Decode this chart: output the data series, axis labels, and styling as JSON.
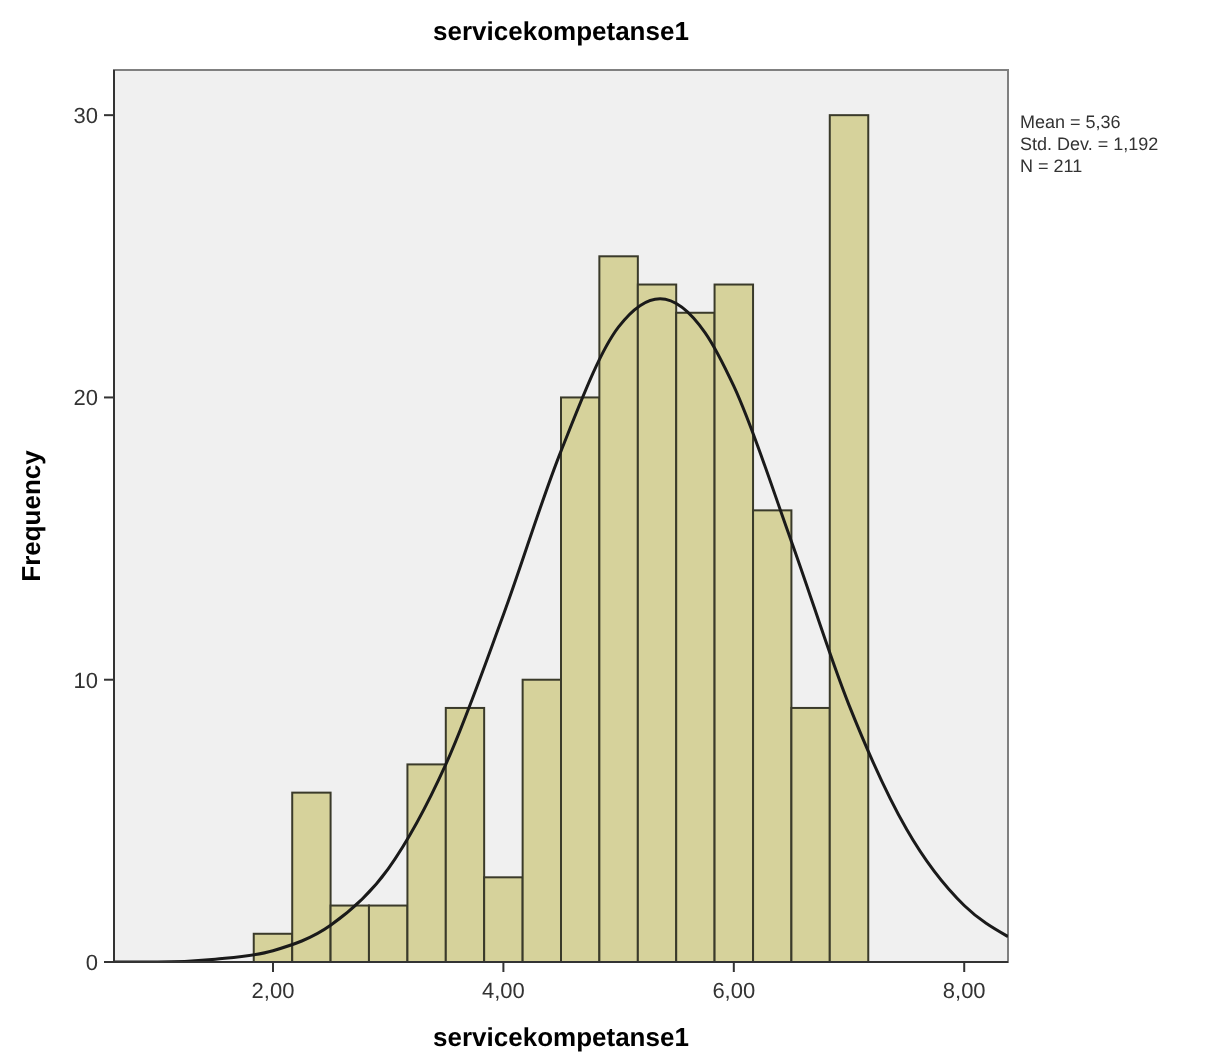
{
  "chart_data": {
    "type": "histogram",
    "title": "servicekompetanse1",
    "xlabel": "servicekompetanse1",
    "ylabel": "Frequency",
    "xlim": [
      0.62,
      8.38
    ],
    "xticks": [
      {
        "value": 2,
        "label": "2,00"
      },
      {
        "value": 4,
        "label": "4,00"
      },
      {
        "value": 6,
        "label": "6,00"
      },
      {
        "value": 8,
        "label": "8,00"
      }
    ],
    "ylim": [
      0,
      31.6
    ],
    "yticks": [
      0,
      10,
      20,
      30
    ],
    "annotations": [
      "Mean = 5,36",
      "Std. Dev. = 1,192",
      "N = 211"
    ],
    "series": [
      {
        "color": "#d6d29b",
        "bins": [
          1.833,
          2.167,
          2.5,
          2.833,
          3.167,
          3.5,
          3.833,
          4.167,
          4.5,
          4.833,
          5.167,
          5.5,
          5.833,
          6.167,
          6.5,
          6.833,
          7.167
        ],
        "values": [
          1,
          6,
          2,
          2,
          7,
          9,
          3,
          10,
          20,
          25,
          24,
          23,
          24,
          16,
          9,
          30
        ]
      },
      {
        "type": "line",
        "color": "#1a1a1a",
        "x": [
          0.62,
          1,
          1.5,
          2,
          2.5,
          3,
          3.5,
          4,
          4.5,
          5,
          5.36,
          5.75,
          6,
          6.5,
          7,
          7.5,
          8,
          8.38
        ],
        "values": [
          0.0,
          0.0,
          0.1,
          0.4,
          1.3,
          3.3,
          7.0,
          12.3,
          18.1,
          22.5,
          23.5,
          22.3,
          20.4,
          14.9,
          9.1,
          4.7,
          2.0,
          0.9
        ]
      }
    ]
  }
}
